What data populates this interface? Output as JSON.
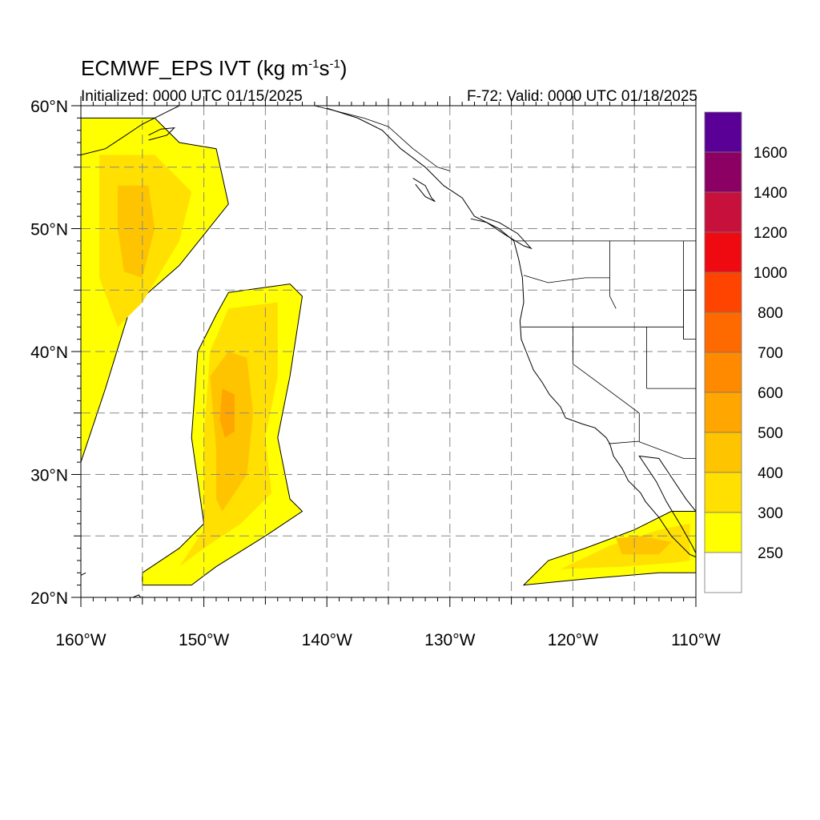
{
  "title": {
    "prefix": "ECMWF_EPS IVT (kg m",
    "exp1": "-1",
    "mid": "s",
    "exp2": "-1",
    "suffix": ")"
  },
  "init_text": "Initialized: 0000 UTC 01/15/2025",
  "valid_text": "F-72: Valid: 0000 UTC 01/18/2025",
  "chart_data": {
    "type": "heatmap",
    "lon_range": [
      -160,
      -110
    ],
    "lat_range": [
      20,
      60
    ],
    "lon_labels": [
      {
        "lon": -160,
        "text": "160°W"
      },
      {
        "lon": -150,
        "text": "150°W"
      },
      {
        "lon": -140,
        "text": "140°W"
      },
      {
        "lon": -130,
        "text": "130°W"
      },
      {
        "lon": -120,
        "text": "120°W"
      },
      {
        "lon": -110,
        "text": "110°W"
      }
    ],
    "lat_labels": [
      {
        "lat": 20,
        "text": "20°N"
      },
      {
        "lat": 30,
        "text": "30°N"
      },
      {
        "lat": 40,
        "text": "40°N"
      },
      {
        "lat": 50,
        "text": "50°N"
      },
      {
        "lat": 60,
        "text": "60°N"
      }
    ],
    "grid_dashed": true,
    "legend": {
      "placement": "right",
      "levels": [
        250,
        300,
        400,
        500,
        600,
        700,
        800,
        1000,
        1200,
        1400,
        1600
      ],
      "labels": [
        "250",
        "300",
        "400",
        "500",
        "600",
        "700",
        "800",
        "1000",
        "1200",
        "1400",
        "1600"
      ],
      "colors": [
        "#ffffff",
        "#ffff00",
        "#ffe000",
        "#ffc400",
        "#ffa600",
        "#ff8a00",
        "#ff6a00",
        "#ff4400",
        "#ee0a10",
        "#c8103c",
        "#8c0064",
        "#5a0096"
      ]
    },
    "features": [
      {
        "name": "north-plume",
        "band_colors": [
          "#ffff00",
          "#ffe000",
          "#ffc400"
        ],
        "bands": [
          [
            [
              -160,
              59
            ],
            [
              -154,
              59
            ],
            [
              -152,
              57
            ],
            [
              -149,
              56.5
            ],
            [
              -148,
              52
            ],
            [
              -152,
              47
            ],
            [
              -156,
              43.5
            ],
            [
              -158,
              37
            ],
            [
              -160,
              31
            ]
          ],
          [
            [
              -158.5,
              56
            ],
            [
              -154,
              56
            ],
            [
              -151,
              53
            ],
            [
              -152,
              49
            ],
            [
              -155,
              44
            ],
            [
              -157,
              42
            ],
            [
              -158.5,
              46
            ]
          ],
          [
            [
              -157,
              53.5
            ],
            [
              -154.5,
              53.5
            ],
            [
              -154,
              50
            ],
            [
              -155,
              46
            ],
            [
              -156.5,
              46.5
            ],
            [
              -157,
              50
            ]
          ]
        ]
      },
      {
        "name": "central-plume",
        "band_colors": [
          "#ffff00",
          "#ffe000",
          "#ffc400",
          "#ffa600"
        ],
        "bands": [
          [
            [
              -148,
              44.8
            ],
            [
              -143,
              45.5
            ],
            [
              -142,
              44.5
            ],
            [
              -143,
              38
            ],
            [
              -144,
              33
            ],
            [
              -143,
              28
            ],
            [
              -142,
              27
            ],
            [
              -145,
              25
            ],
            [
              -149,
              22.5
            ],
            [
              -151,
              21
            ],
            [
              -155,
              21
            ],
            [
              -155,
              22
            ],
            [
              -152,
              24
            ],
            [
              -150,
              26
            ],
            [
              -151,
              33
            ],
            [
              -150.5,
              40
            ],
            [
              -149,
              43
            ]
          ],
          [
            [
              -148,
              43.5
            ],
            [
              -144,
              44
            ],
            [
              -144,
              38
            ],
            [
              -145,
              33
            ],
            [
              -144.5,
              28.5
            ],
            [
              -147,
              26
            ],
            [
              -150,
              24
            ],
            [
              -152,
              22.5
            ],
            [
              -150,
              25.5
            ],
            [
              -150,
              33
            ],
            [
              -149.5,
              40
            ]
          ],
          [
            [
              -148,
              40
            ],
            [
              -146.5,
              39.5
            ],
            [
              -146,
              35
            ],
            [
              -146.5,
              30
            ],
            [
              -148.5,
              27
            ],
            [
              -149,
              28
            ],
            [
              -149,
              32
            ],
            [
              -149.5,
              38
            ]
          ],
          [
            [
              -148.5,
              37
            ],
            [
              -147.5,
              36.5
            ],
            [
              -147.5,
              33.5
            ],
            [
              -148.3,
              33
            ],
            [
              -148.7,
              34.5
            ]
          ]
        ]
      },
      {
        "name": "southeast-plume",
        "band_colors": [
          "#ffff00",
          "#ffe000",
          "#ffc400"
        ],
        "bands": [
          [
            [
              -124,
              21
            ],
            [
              -119,
              21.5
            ],
            [
              -113,
              22
            ],
            [
              -110,
              22
            ],
            [
              -110,
              27
            ],
            [
              -112,
              27
            ],
            [
              -115,
              25.5
            ],
            [
              -119,
              24
            ],
            [
              -122,
              23
            ]
          ],
          [
            [
              -121,
              22.3
            ],
            [
              -116,
              22.5
            ],
            [
              -112,
              22.8
            ],
            [
              -110.5,
              23
            ],
            [
              -110.5,
              26
            ],
            [
              -113,
              25.5
            ],
            [
              -117,
              24.2
            ]
          ],
          [
            [
              -116,
              23.5
            ],
            [
              -113,
              23.5
            ],
            [
              -112,
              24.5
            ],
            [
              -114.5,
              25
            ],
            [
              -116.5,
              24.8
            ]
          ]
        ]
      }
    ],
    "coastlines": [
      {
        "name": "north-america-coast",
        "points": [
          [
            -140,
            59.8
          ],
          [
            -137.5,
            59
          ],
          [
            -135.5,
            58
          ],
          [
            -134,
            56.5
          ],
          [
            -132,
            55
          ],
          [
            -130.5,
            53.5
          ],
          [
            -129,
            52.5
          ],
          [
            -128,
            51
          ],
          [
            -126,
            50
          ],
          [
            -124.8,
            49
          ],
          [
            -124.4,
            47.5
          ],
          [
            -124.1,
            46
          ],
          [
            -124,
            44
          ],
          [
            -124.3,
            42.5
          ],
          [
            -124.2,
            41
          ],
          [
            -123.8,
            40
          ],
          [
            -123.2,
            38.5
          ],
          [
            -122.5,
            37.5
          ],
          [
            -121.9,
            36.5
          ],
          [
            -121,
            35.5
          ],
          [
            -120.6,
            34.6
          ],
          [
            -119.2,
            34.1
          ],
          [
            -118.2,
            33.8
          ],
          [
            -117.3,
            33
          ],
          [
            -117,
            32.5
          ],
          [
            -116.7,
            31.5
          ],
          [
            -116,
            30.5
          ],
          [
            -115.5,
            29.5
          ],
          [
            -114.5,
            28.5
          ],
          [
            -114.1,
            27.8
          ],
          [
            -113,
            26.5
          ],
          [
            -112,
            25
          ],
          [
            -110.5,
            23.5
          ],
          [
            -109.8,
            23.2
          ],
          [
            -110.3,
            24.2
          ],
          [
            -111.2,
            25.8
          ],
          [
            -112.4,
            27.8
          ],
          [
            -113.2,
            29.4
          ],
          [
            -114.6,
            31.5
          ],
          [
            -113,
            31.3
          ],
          [
            -112,
            29.8
          ],
          [
            -110.8,
            28
          ],
          [
            -110,
            27
          ],
          [
            -110,
            22
          ]
        ]
      },
      {
        "name": "vancouver-island",
        "points": [
          [
            -128.3,
            50.8
          ],
          [
            -127,
            50.5
          ],
          [
            -125.5,
            49.5
          ],
          [
            -124,
            48.6
          ],
          [
            -123.4,
            48.4
          ],
          [
            -124.5,
            49.6
          ],
          [
            -126,
            50.5
          ],
          [
            -127.5,
            51
          ]
        ]
      },
      {
        "name": "haida-gwaii",
        "points": [
          [
            -133,
            54.1
          ],
          [
            -132,
            53.5
          ],
          [
            -131.5,
            52.5
          ],
          [
            -131.2,
            52.2
          ],
          [
            -132,
            52.6
          ],
          [
            -132.8,
            53.6
          ]
        ]
      },
      {
        "name": "alaska-south-coast",
        "points": [
          [
            -160,
            56
          ],
          [
            -158,
            56.5
          ],
          [
            -156.5,
            57.5
          ],
          [
            -155,
            58.5
          ],
          [
            -153,
            59.5
          ],
          [
            -152,
            60
          ]
        ]
      },
      {
        "name": "kodiak",
        "points": [
          [
            -154.5,
            57.2
          ],
          [
            -153,
            57.6
          ],
          [
            -152.4,
            58.2
          ],
          [
            -153.5,
            58.1
          ],
          [
            -154.5,
            57.6
          ]
        ]
      },
      {
        "name": "hawaii",
        "points": [
          [
            -160,
            21.8
          ],
          [
            -159.6,
            22
          ]
        ]
      },
      {
        "name": "big-island",
        "points": [
          [
            -156,
            19.9
          ],
          [
            -155.3,
            20.2
          ],
          [
            -154.8,
            19.6
          ],
          [
            -155.6,
            19.1
          ]
        ]
      }
    ],
    "borders": [
      {
        "name": "us-canada",
        "points": [
          [
            -124.7,
            49
          ],
          [
            -110,
            49
          ]
        ]
      },
      {
        "name": "alaska-canada",
        "points": [
          [
            -141,
            60
          ],
          [
            -137,
            59
          ],
          [
            -135,
            58.3
          ],
          [
            -133,
            56.5
          ],
          [
            -131,
            55
          ],
          [
            -130,
            54.7
          ]
        ]
      },
      {
        "name": "wa-or",
        "points": [
          [
            -124,
            46.2
          ],
          [
            -122,
            45.6
          ],
          [
            -119,
            46
          ],
          [
            -117,
            46
          ]
        ]
      },
      {
        "name": "id-west",
        "points": [
          [
            -117,
            49
          ],
          [
            -117,
            44.5
          ],
          [
            -116.5,
            43.5
          ]
        ]
      },
      {
        "name": "or-ca-nv-id",
        "points": [
          [
            -124.2,
            42
          ],
          [
            -111,
            42
          ]
        ]
      },
      {
        "name": "ca-nv",
        "points": [
          [
            -120,
            42
          ],
          [
            -120,
            39
          ],
          [
            -114.6,
            35
          ]
        ]
      },
      {
        "name": "nv-ut",
        "points": [
          [
            -114,
            42
          ],
          [
            -114,
            37
          ]
        ]
      },
      {
        "name": "az-ut",
        "points": [
          [
            -114,
            37
          ],
          [
            -110,
            37
          ]
        ]
      },
      {
        "name": "az-west",
        "points": [
          [
            -114.6,
            35
          ],
          [
            -114.6,
            32.7
          ]
        ]
      },
      {
        "name": "us-mexico",
        "points": [
          [
            -117.1,
            32.5
          ],
          [
            -114.7,
            32.7
          ],
          [
            -111,
            31.3
          ],
          [
            -110,
            31.3
          ]
        ]
      },
      {
        "name": "mt-east",
        "points": [
          [
            -111,
            49
          ],
          [
            -111,
            45
          ],
          [
            -110,
            45
          ]
        ]
      },
      {
        "name": "ut-east",
        "points": [
          [
            -111,
            45
          ],
          [
            -111,
            41
          ],
          [
            -110,
            41
          ]
        ]
      },
      {
        "name": "wy-id",
        "points": [
          [
            -111,
            41
          ],
          [
            -111,
            45
          ]
        ]
      }
    ]
  }
}
